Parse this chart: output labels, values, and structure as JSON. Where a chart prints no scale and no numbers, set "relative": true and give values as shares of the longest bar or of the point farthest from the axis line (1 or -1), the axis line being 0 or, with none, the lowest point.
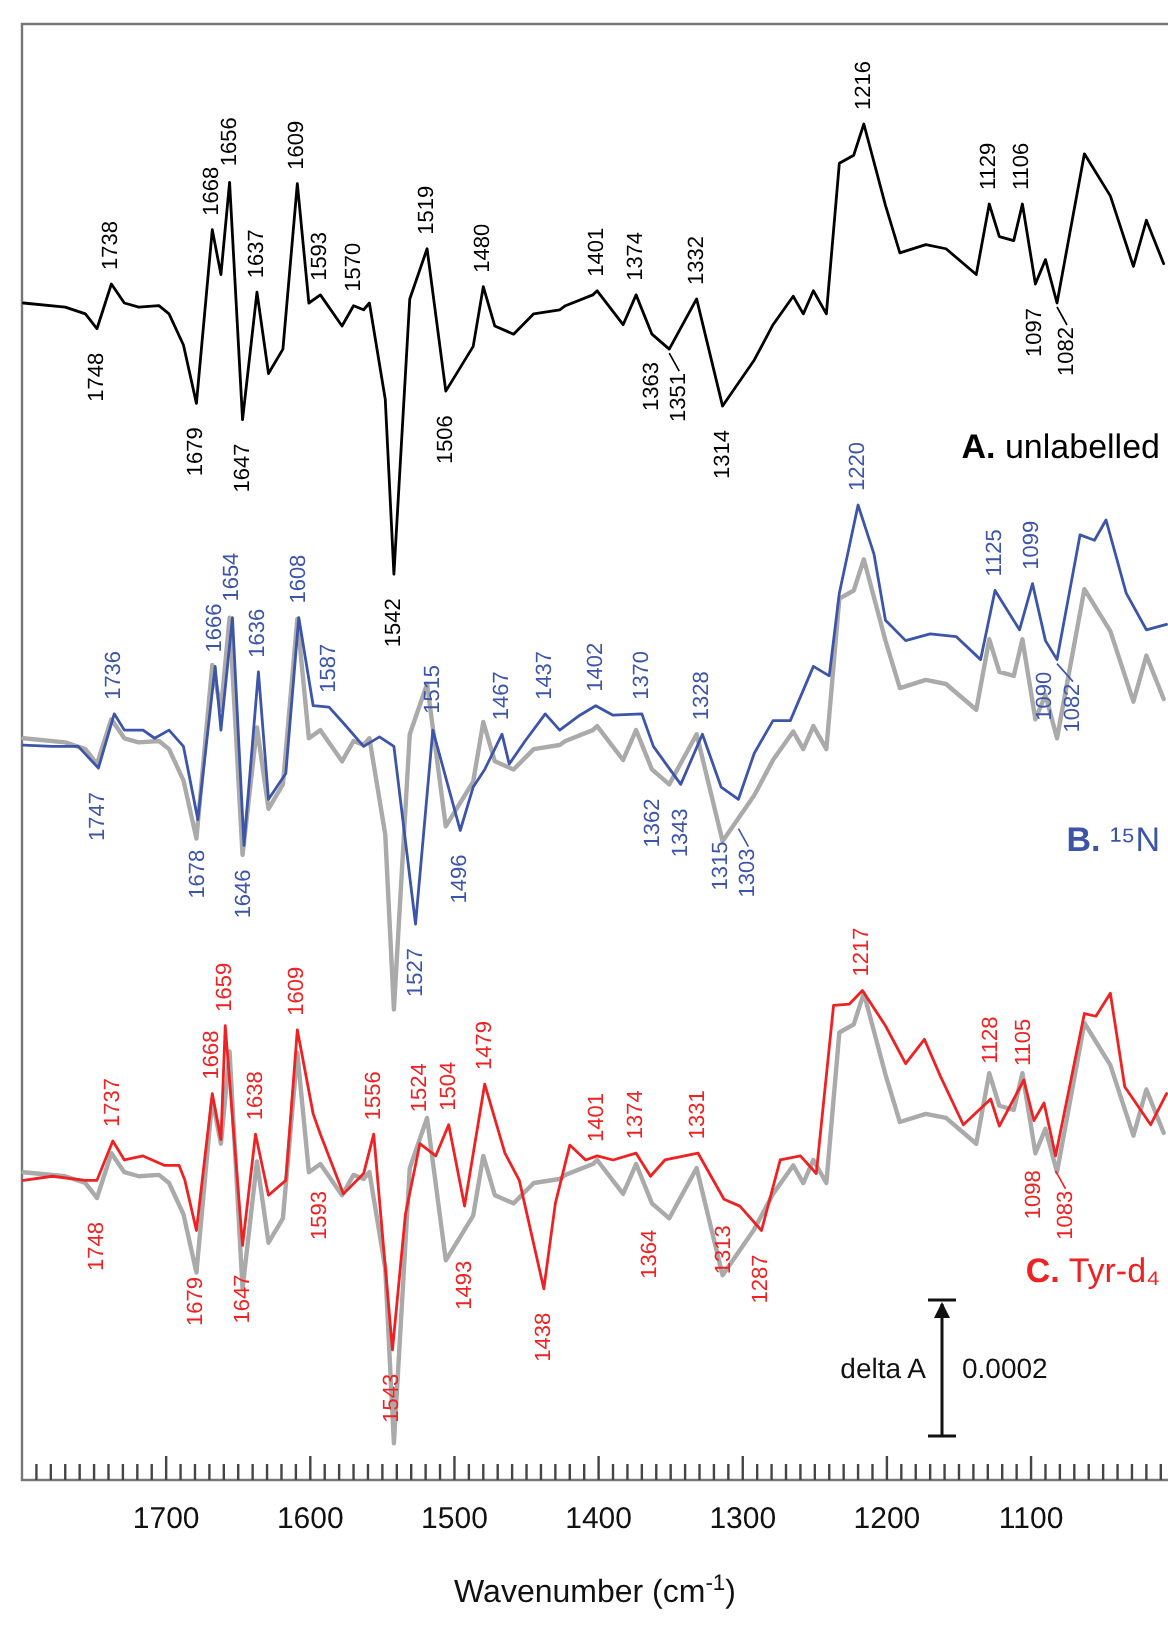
{
  "chart_data": {
    "type": "line",
    "relative": true,
    "xlabel": "Wavenumber (cm$^{-1}$)",
    "xlim": [
      1800,
      1005
    ],
    "xticks": [
      {
        "value": 1790,
        "label": null
      },
      {
        "value": 1780,
        "label": null
      },
      {
        "value": 1770,
        "label": null
      },
      {
        "value": 1760,
        "label": null
      },
      {
        "value": 1750,
        "label": null
      },
      {
        "value": 1740,
        "label": null
      },
      {
        "value": 1730,
        "label": null
      },
      {
        "value": 1720,
        "label": null
      },
      {
        "value": 1710,
        "label": null
      },
      1700,
      {
        "value": 1690,
        "label": null
      },
      {
        "value": 1680,
        "label": null
      },
      {
        "value": 1670,
        "label": null
      },
      {
        "value": 1660,
        "label": null
      },
      {
        "value": 1650,
        "label": null
      },
      {
        "value": 1640,
        "label": null
      },
      {
        "value": 1630,
        "label": null
      },
      {
        "value": 1620,
        "label": null
      },
      {
        "value": 1610,
        "label": null
      },
      1600,
      {
        "value": 1590,
        "label": null
      },
      {
        "value": 1580,
        "label": null
      },
      {
        "value": 1570,
        "label": null
      },
      {
        "value": 1560,
        "label": null
      },
      {
        "value": 1550,
        "label": null
      },
      {
        "value": 1540,
        "label": null
      },
      {
        "value": 1530,
        "label": null
      },
      {
        "value": 1520,
        "label": null
      },
      {
        "value": 1510,
        "label": null
      },
      1500,
      {
        "value": 1490,
        "label": null
      },
      {
        "value": 1480,
        "label": null
      },
      {
        "value": 1470,
        "label": null
      },
      {
        "value": 1460,
        "label": null
      },
      {
        "value": 1450,
        "label": null
      },
      {
        "value": 1440,
        "label": null
      },
      {
        "value": 1430,
        "label": null
      },
      {
        "value": 1420,
        "label": null
      },
      {
        "value": 1410,
        "label": null
      },
      1400,
      {
        "value": 1390,
        "label": null
      },
      {
        "value": 1380,
        "label": null
      },
      {
        "value": 1370,
        "label": null
      },
      {
        "value": 1360,
        "label": null
      },
      {
        "value": 1350,
        "label": null
      },
      {
        "value": 1340,
        "label": null
      },
      {
        "value": 1330,
        "label": null
      },
      {
        "value": 1320,
        "label": null
      },
      {
        "value": 1310,
        "label": null
      },
      1300,
      {
        "value": 1290,
        "label": null
      },
      {
        "value": 1280,
        "label": null
      },
      {
        "value": 1270,
        "label": null
      },
      {
        "value": 1260,
        "label": null
      },
      {
        "value": 1250,
        "label": null
      },
      {
        "value": 1240,
        "label": null
      },
      {
        "value": 1230,
        "label": null
      },
      {
        "value": 1220,
        "label": null
      },
      {
        "value": 1210,
        "label": null
      },
      1200,
      {
        "value": 1190,
        "label": null
      },
      {
        "value": 1180,
        "label": null
      },
      {
        "value": 1170,
        "label": null
      },
      {
        "value": 1160,
        "label": null
      },
      {
        "value": 1150,
        "label": null
      },
      {
        "value": 1140,
        "label": null
      },
      {
        "value": 1130,
        "label": null
      },
      {
        "value": 1120,
        "label": null
      },
      {
        "value": 1110,
        "label": null
      },
      1100,
      {
        "value": 1090,
        "label": null
      },
      {
        "value": 1080,
        "label": null
      },
      {
        "value": 1070,
        "label": null
      },
      {
        "value": 1060,
        "label": null
      },
      {
        "value": 1050,
        "label": null
      },
      {
        "value": 1040,
        "label": null
      },
      {
        "value": 1030,
        "label": null
      },
      {
        "value": 1020,
        "label": null
      },
      {
        "value": 1010,
        "label": null
      }
    ],
    "series": [
      {
        "color": "#aaaaaa",
        "x": [
          1799,
          1770,
          1756,
          1748,
          1738,
          1729,
          1719,
          1705,
          1698,
          1688,
          1679,
          1668,
          1662,
          1656,
          1647,
          1637,
          1629,
          1619,
          1609,
          1601,
          1593,
          1578,
          1570,
          1563,
          1559,
          1548,
          1542,
          1531,
          1519,
          1506,
          1487,
          1480,
          1472,
          1459,
          1445,
          1427,
          1423,
          1404,
          1401,
          1383,
          1374,
          1363,
          1351,
          1332,
          1314,
          1292,
          1279,
          1265,
          1258,
          1251,
          1242,
          1233,
          1223,
          1216,
          1201,
          1191,
          1173,
          1159,
          1138,
          1129,
          1122,
          1112,
          1106,
          1097,
          1090,
          1082,
          1063,
          1045,
          1029,
          1020,
          1008
        ],
        "values": [
          0.547,
          0.544,
          0.539,
          0.528,
          0.561,
          0.547,
          0.544,
          0.545,
          0.539,
          0.516,
          0.473,
          0.601,
          0.568,
          0.636,
          0.461,
          0.555,
          0.495,
          0.513,
          0.635,
          0.547,
          0.553,
          0.53,
          0.545,
          0.542,
          0.547,
          0.476,
          0.347,
          0.55,
          0.587,
          0.482,
          0.515,
          0.559,
          0.53,
          0.524,
          0.539,
          0.542,
          0.545,
          0.553,
          0.556,
          0.531,
          0.553,
          0.524,
          0.513,
          0.55,
          0.471,
          0.505,
          0.531,
          0.552,
          0.539,
          0.556,
          0.539,
          0.65,
          0.656,
          0.679,
          0.619,
          0.584,
          0.59,
          0.587,
          0.568,
          0.62,
          0.596,
          0.593,
          0.62,
          0.561,
          0.579,
          0.547,
          0.657,
          0.626,
          0.574,
          0.608,
          0.576
        ]
      },
      {
        "color": "#aaaaaa",
        "x": [
          1799,
          1770,
          1756,
          1748,
          1738,
          1729,
          1719,
          1705,
          1698,
          1688,
          1679,
          1668,
          1662,
          1656,
          1647,
          1637,
          1629,
          1619,
          1609,
          1601,
          1593,
          1578,
          1570,
          1563,
          1559,
          1548,
          1542,
          1531,
          1519,
          1506,
          1487,
          1480,
          1472,
          1459,
          1445,
          1427,
          1423,
          1404,
          1401,
          1383,
          1374,
          1363,
          1351,
          1332,
          1314,
          1292,
          1279,
          1265,
          1258,
          1251,
          1242,
          1233,
          1223,
          1216,
          1201,
          1191,
          1173,
          1159,
          1138,
          1129,
          1122,
          1112,
          1106,
          1097,
          1090,
          1082,
          1063,
          1045,
          1029,
          1020,
          1008
        ],
        "values": [
          0.227,
          0.224,
          0.219,
          0.208,
          0.241,
          0.227,
          0.224,
          0.225,
          0.219,
          0.196,
          0.153,
          0.281,
          0.248,
          0.316,
          0.141,
          0.235,
          0.175,
          0.193,
          0.315,
          0.227,
          0.233,
          0.21,
          0.225,
          0.222,
          0.227,
          0.156,
          0.027,
          0.23,
          0.267,
          0.162,
          0.195,
          0.239,
          0.21,
          0.204,
          0.219,
          0.222,
          0.225,
          0.233,
          0.236,
          0.211,
          0.233,
          0.204,
          0.193,
          0.23,
          0.151,
          0.185,
          0.211,
          0.232,
          0.219,
          0.236,
          0.219,
          0.33,
          0.336,
          0.359,
          0.299,
          0.264,
          0.27,
          0.267,
          0.248,
          0.3,
          0.276,
          0.273,
          0.3,
          0.241,
          0.259,
          0.227,
          0.337,
          0.306,
          0.254,
          0.288,
          0.256
        ]
      },
      {
        "name": "A. unlabelled",
        "color": "#000000",
        "x": [
          1799,
          1770,
          1756,
          1748,
          1738,
          1729,
          1719,
          1705,
          1698,
          1688,
          1679,
          1668,
          1662,
          1656,
          1647,
          1637,
          1629,
          1619,
          1609,
          1601,
          1593,
          1578,
          1570,
          1563,
          1559,
          1548,
          1542,
          1531,
          1519,
          1506,
          1487,
          1480,
          1472,
          1459,
          1445,
          1427,
          1423,
          1404,
          1401,
          1383,
          1374,
          1363,
          1351,
          1332,
          1314,
          1292,
          1279,
          1265,
          1258,
          1251,
          1242,
          1233,
          1223,
          1216,
          1201,
          1191,
          1173,
          1159,
          1138,
          1129,
          1122,
          1112,
          1106,
          1097,
          1090,
          1082,
          1063,
          1045,
          1029,
          1020,
          1008
        ],
        "values": [
          0.868,
          0.865,
          0.86,
          0.849,
          0.882,
          0.868,
          0.865,
          0.866,
          0.86,
          0.837,
          0.794,
          0.922,
          0.889,
          0.957,
          0.782,
          0.876,
          0.816,
          0.834,
          0.956,
          0.868,
          0.874,
          0.851,
          0.866,
          0.863,
          0.868,
          0.797,
          0.668,
          0.871,
          0.908,
          0.803,
          0.836,
          0.88,
          0.851,
          0.845,
          0.86,
          0.863,
          0.866,
          0.874,
          0.877,
          0.852,
          0.874,
          0.845,
          0.834,
          0.871,
          0.792,
          0.826,
          0.852,
          0.873,
          0.86,
          0.877,
          0.86,
          0.971,
          0.977,
          1,
          0.94,
          0.905,
          0.911,
          0.908,
          0.889,
          0.941,
          0.917,
          0.914,
          0.941,
          0.882,
          0.9,
          0.868,
          0.978,
          0.947,
          0.895,
          0.929,
          0.897
        ]
      },
      {
        "name": "B. ¹⁵N",
        "color": "#3d55a8",
        "x": [
          1799,
          1779,
          1761,
          1747,
          1736,
          1729,
          1716,
          1708,
          1698,
          1688,
          1678,
          1666,
          1662,
          1654,
          1646,
          1636,
          1629,
          1617,
          1608,
          1598,
          1587,
          1576,
          1563,
          1552,
          1542,
          1527,
          1515,
          1496,
          1487,
          1479,
          1467,
          1462,
          1451,
          1437,
          1427,
          1413,
          1402,
          1390,
          1370,
          1362,
          1343,
          1328,
          1315,
          1303,
          1292,
          1279,
          1267,
          1251,
          1240,
          1233,
          1220,
          1209,
          1201,
          1187,
          1170,
          1152,
          1135,
          1125,
          1108,
          1099,
          1090,
          1082,
          1066,
          1056,
          1048,
          1034,
          1020,
          1006
        ],
        "values": [
          0.542,
          0.541,
          0.541,
          0.525,
          0.565,
          0.553,
          0.553,
          0.547,
          0.553,
          0.541,
          0.487,
          0.6,
          0.553,
          0.636,
          0.468,
          0.596,
          0.502,
          0.521,
          0.636,
          0.571,
          0.57,
          0.557,
          0.541,
          0.548,
          0.541,
          0.41,
          0.553,
          0.479,
          0.511,
          0.524,
          0.55,
          0.528,
          0.545,
          0.565,
          0.553,
          0.564,
          0.571,
          0.564,
          0.565,
          0.541,
          0.513,
          0.55,
          0.511,
          0.502,
          0.536,
          0.56,
          0.56,
          0.6,
          0.593,
          0.654,
          0.719,
          0.683,
          0.634,
          0.619,
          0.624,
          0.622,
          0.605,
          0.656,
          0.627,
          0.661,
          0.619,
          0.605,
          0.697,
          0.693,
          0.708,
          0.654,
          0.627,
          0.631
        ]
      },
      {
        "name": "C. Tyr-d₄",
        "color": "#ee2222",
        "x": [
          1799,
          1779,
          1756,
          1748,
          1737,
          1729,
          1716,
          1701,
          1691,
          1687,
          1679,
          1668,
          1662,
          1659,
          1647,
          1638,
          1629,
          1617,
          1609,
          1598,
          1593,
          1577,
          1563,
          1556,
          1543,
          1534,
          1524,
          1513,
          1504,
          1493,
          1479,
          1465,
          1455,
          1438,
          1430,
          1420,
          1409,
          1401,
          1390,
          1374,
          1364,
          1354,
          1331,
          1313,
          1302,
          1287,
          1274,
          1260,
          1249,
          1237,
          1226,
          1217,
          1201,
          1187,
          1174,
          1163,
          1147,
          1128,
          1122,
          1105,
          1098,
          1091,
          1083,
          1063,
          1055,
          1045,
          1035,
          1017,
          1006
        ],
        "values": [
          0.221,
          0.224,
          0.221,
          0.221,
          0.25,
          0.236,
          0.239,
          0.232,
          0.232,
          0.221,
          0.184,
          0.285,
          0.251,
          0.335,
          0.173,
          0.255,
          0.21,
          0.221,
          0.332,
          0.27,
          0.255,
          0.211,
          0.226,
          0.255,
          0.096,
          0.196,
          0.248,
          0.239,
          0.262,
          0.202,
          0.292,
          0.241,
          0.221,
          0.141,
          0.204,
          0.247,
          0.236,
          0.239,
          0.236,
          0.241,
          0.224,
          0.236,
          0.241,
          0.207,
          0.202,
          0.184,
          0.236,
          0.239,
          0.226,
          0.35,
          0.351,
          0.361,
          0.335,
          0.307,
          0.325,
          0.298,
          0.262,
          0.281,
          0.261,
          0.295,
          0.265,
          0.278,
          0.239,
          0.344,
          0.342,
          0.359,
          0.29,
          0.262,
          0.285
        ]
      }
    ],
    "annotations": [
      {
        "text": "1748",
        "x": 1748,
        "y": 0.849
      },
      {
        "text": "1738",
        "x": 1738,
        "y": 0.882
      },
      {
        "text": "1679",
        "x": 1679,
        "y": 0.794
      },
      {
        "text": "1668",
        "x": 1668,
        "y": 0.922
      },
      {
        "text": "1656",
        "x": 1656,
        "y": 0.957
      },
      {
        "text": "1647",
        "x": 1647,
        "y": 0.782
      },
      {
        "text": "1637",
        "x": 1637,
        "y": 0.876
      },
      {
        "text": "1609",
        "x": 1609,
        "y": 0.956
      },
      {
        "text": "1593",
        "x": 1593,
        "y": 0.874
      },
      {
        "text": "1570",
        "x": 1570,
        "y": 0.866
      },
      {
        "text": "1542",
        "x": 1542,
        "y": 0.668
      },
      {
        "text": "1519",
        "x": 1519,
        "y": 0.908
      },
      {
        "text": "1506",
        "x": 1506,
        "y": 0.803
      },
      {
        "text": "1480",
        "x": 1480,
        "y": 0.88
      },
      {
        "text": "1401",
        "x": 1401,
        "y": 0.877
      },
      {
        "text": "1374",
        "x": 1374,
        "y": 0.874
      },
      {
        "text": "1363",
        "x": 1363,
        "y": 0.845
      },
      {
        "text": "1351",
        "x": 1351,
        "y": 0.834
      },
      {
        "text": "1332",
        "x": 1332,
        "y": 0.871
      },
      {
        "text": "1314",
        "x": 1314,
        "y": 0.792
      },
      {
        "text": "1216",
        "x": 1216,
        "y": 1
      },
      {
        "text": "1129",
        "x": 1129,
        "y": 0.941
      },
      {
        "text": "1106",
        "x": 1106,
        "y": 0.941
      },
      {
        "text": "1097",
        "x": 1097,
        "y": 0.882
      },
      {
        "text": "1082",
        "x": 1082,
        "y": 0.868
      },
      {
        "text": "1747",
        "x": 1747,
        "y": 0.525
      },
      {
        "text": "1736",
        "x": 1736,
        "y": 0.565
      },
      {
        "text": "1678",
        "x": 1678,
        "y": 0.487
      },
      {
        "text": "1666",
        "x": 1666,
        "y": 0.6
      },
      {
        "text": "1654",
        "x": 1654,
        "y": 0.636
      },
      {
        "text": "1646",
        "x": 1646,
        "y": 0.468
      },
      {
        "text": "1636",
        "x": 1636,
        "y": 0.596
      },
      {
        "text": "1608",
        "x": 1608,
        "y": 0.636
      },
      {
        "text": "1587",
        "x": 1587,
        "y": 0.57
      },
      {
        "text": "1527",
        "x": 1527,
        "y": 0.41
      },
      {
        "text": "1515",
        "x": 1515,
        "y": 0.553
      },
      {
        "text": "1496",
        "x": 1496,
        "y": 0.479
      },
      {
        "text": "1467",
        "x": 1467,
        "y": 0.55
      },
      {
        "text": "1437",
        "x": 1437,
        "y": 0.565
      },
      {
        "text": "1402",
        "x": 1402,
        "y": 0.571
      },
      {
        "text": "1370",
        "x": 1370,
        "y": 0.565
      },
      {
        "text": "1362",
        "x": 1362,
        "y": 0.541
      },
      {
        "text": "1343",
        "x": 1343,
        "y": 0.513
      },
      {
        "text": "1328",
        "x": 1328,
        "y": 0.55
      },
      {
        "text": "1315",
        "x": 1315,
        "y": 0.511
      },
      {
        "text": "1303",
        "x": 1303,
        "y": 0.502
      },
      {
        "text": "1220",
        "x": 1220,
        "y": 0.719
      },
      {
        "text": "1125",
        "x": 1125,
        "y": 0.656
      },
      {
        "text": "1099",
        "x": 1099,
        "y": 0.661
      },
      {
        "text": "1090",
        "x": 1090,
        "y": 0.619
      },
      {
        "text": "1082",
        "x": 1082,
        "y": 0.605
      },
      {
        "text": "1748",
        "x": 1748,
        "y": 0.221
      },
      {
        "text": "1737",
        "x": 1737,
        "y": 0.25
      },
      {
        "text": "1679",
        "x": 1679,
        "y": 0.184
      },
      {
        "text": "1668",
        "x": 1668,
        "y": 0.285
      },
      {
        "text": "1659",
        "x": 1659,
        "y": 0.335
      },
      {
        "text": "1647",
        "x": 1647,
        "y": 0.173
      },
      {
        "text": "1638",
        "x": 1638,
        "y": 0.255
      },
      {
        "text": "1609",
        "x": 1609,
        "y": 0.332
      },
      {
        "text": "1593",
        "x": 1593,
        "y": 0.255
      },
      {
        "text": "1556",
        "x": 1556,
        "y": 0.255
      },
      {
        "text": "1543",
        "x": 1543,
        "y": 0.096
      },
      {
        "text": "1524",
        "x": 1524,
        "y": 0.248
      },
      {
        "text": "1504",
        "x": 1504,
        "y": 0.262
      },
      {
        "text": "1493",
        "x": 1493,
        "y": 0.202
      },
      {
        "text": "1479",
        "x": 1479,
        "y": 0.292
      },
      {
        "text": "1438",
        "x": 1438,
        "y": 0.141
      },
      {
        "text": "1401",
        "x": 1401,
        "y": 0.239
      },
      {
        "text": "1374",
        "x": 1374,
        "y": 0.241
      },
      {
        "text": "1364",
        "x": 1364,
        "y": 0.224
      },
      {
        "text": "1331",
        "x": 1331,
        "y": 0.241
      },
      {
        "text": "1313",
        "x": 1313,
        "y": 0.207
      },
      {
        "text": "1287",
        "x": 1287,
        "y": 0.184
      },
      {
        "text": "1217",
        "x": 1217,
        "y": 0.361
      },
      {
        "text": "1128",
        "x": 1128,
        "y": 0.281
      },
      {
        "text": "1105",
        "x": 1105,
        "y": 0.295
      },
      {
        "text": "1098",
        "x": 1098,
        "y": 0.265
      },
      {
        "text": "1083",
        "x": 1083,
        "y": 0.239
      },
      "delta A",
      "0.0002"
    ]
  }
}
